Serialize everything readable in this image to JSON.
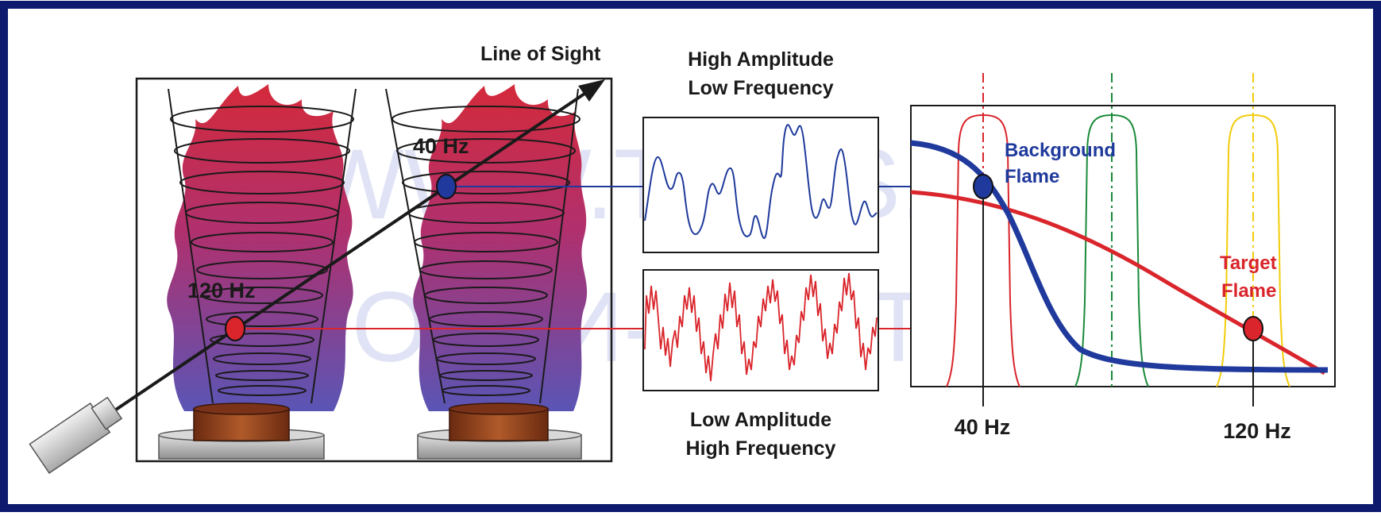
{
  "labels": {
    "line_of_sight": "Line of Sight",
    "high_amp_line1": "High Amplitude",
    "high_amp_line2": "Low Frequency",
    "low_amp_line1": "Low Amplitude",
    "low_amp_line2": "High Frequency",
    "flame_40": "40 Hz",
    "flame_120": "120 Hz",
    "background_line1": "Background",
    "background_line2": "Flame",
    "target_line1": "Target",
    "target_line2": "Flame",
    "axis_40": "40 Hz",
    "axis_120": "120 Hz"
  },
  "watermark": {
    "line1": "WWW.TISYS.RU",
    "line2": "ООО \"ТИ-СИСТЕМС\""
  },
  "colors": {
    "frame_border": "#0d1a6e",
    "background_flame": "#1f3a9c",
    "target_flame": "#d9252b",
    "filter_red": "#d9252b",
    "filter_green": "#1a8a3a",
    "filter_yellow": "#f2cc0c",
    "flame_top": "#d42a3a",
    "flame_mid": "#b0306e",
    "flame_bottom": "#5a55b5",
    "burner": "#8a3a1a",
    "watermark": "#c8cdee"
  },
  "icons": {
    "sensor": "flame-detector-sensor-icon",
    "burner": "burner-base-icon"
  }
}
